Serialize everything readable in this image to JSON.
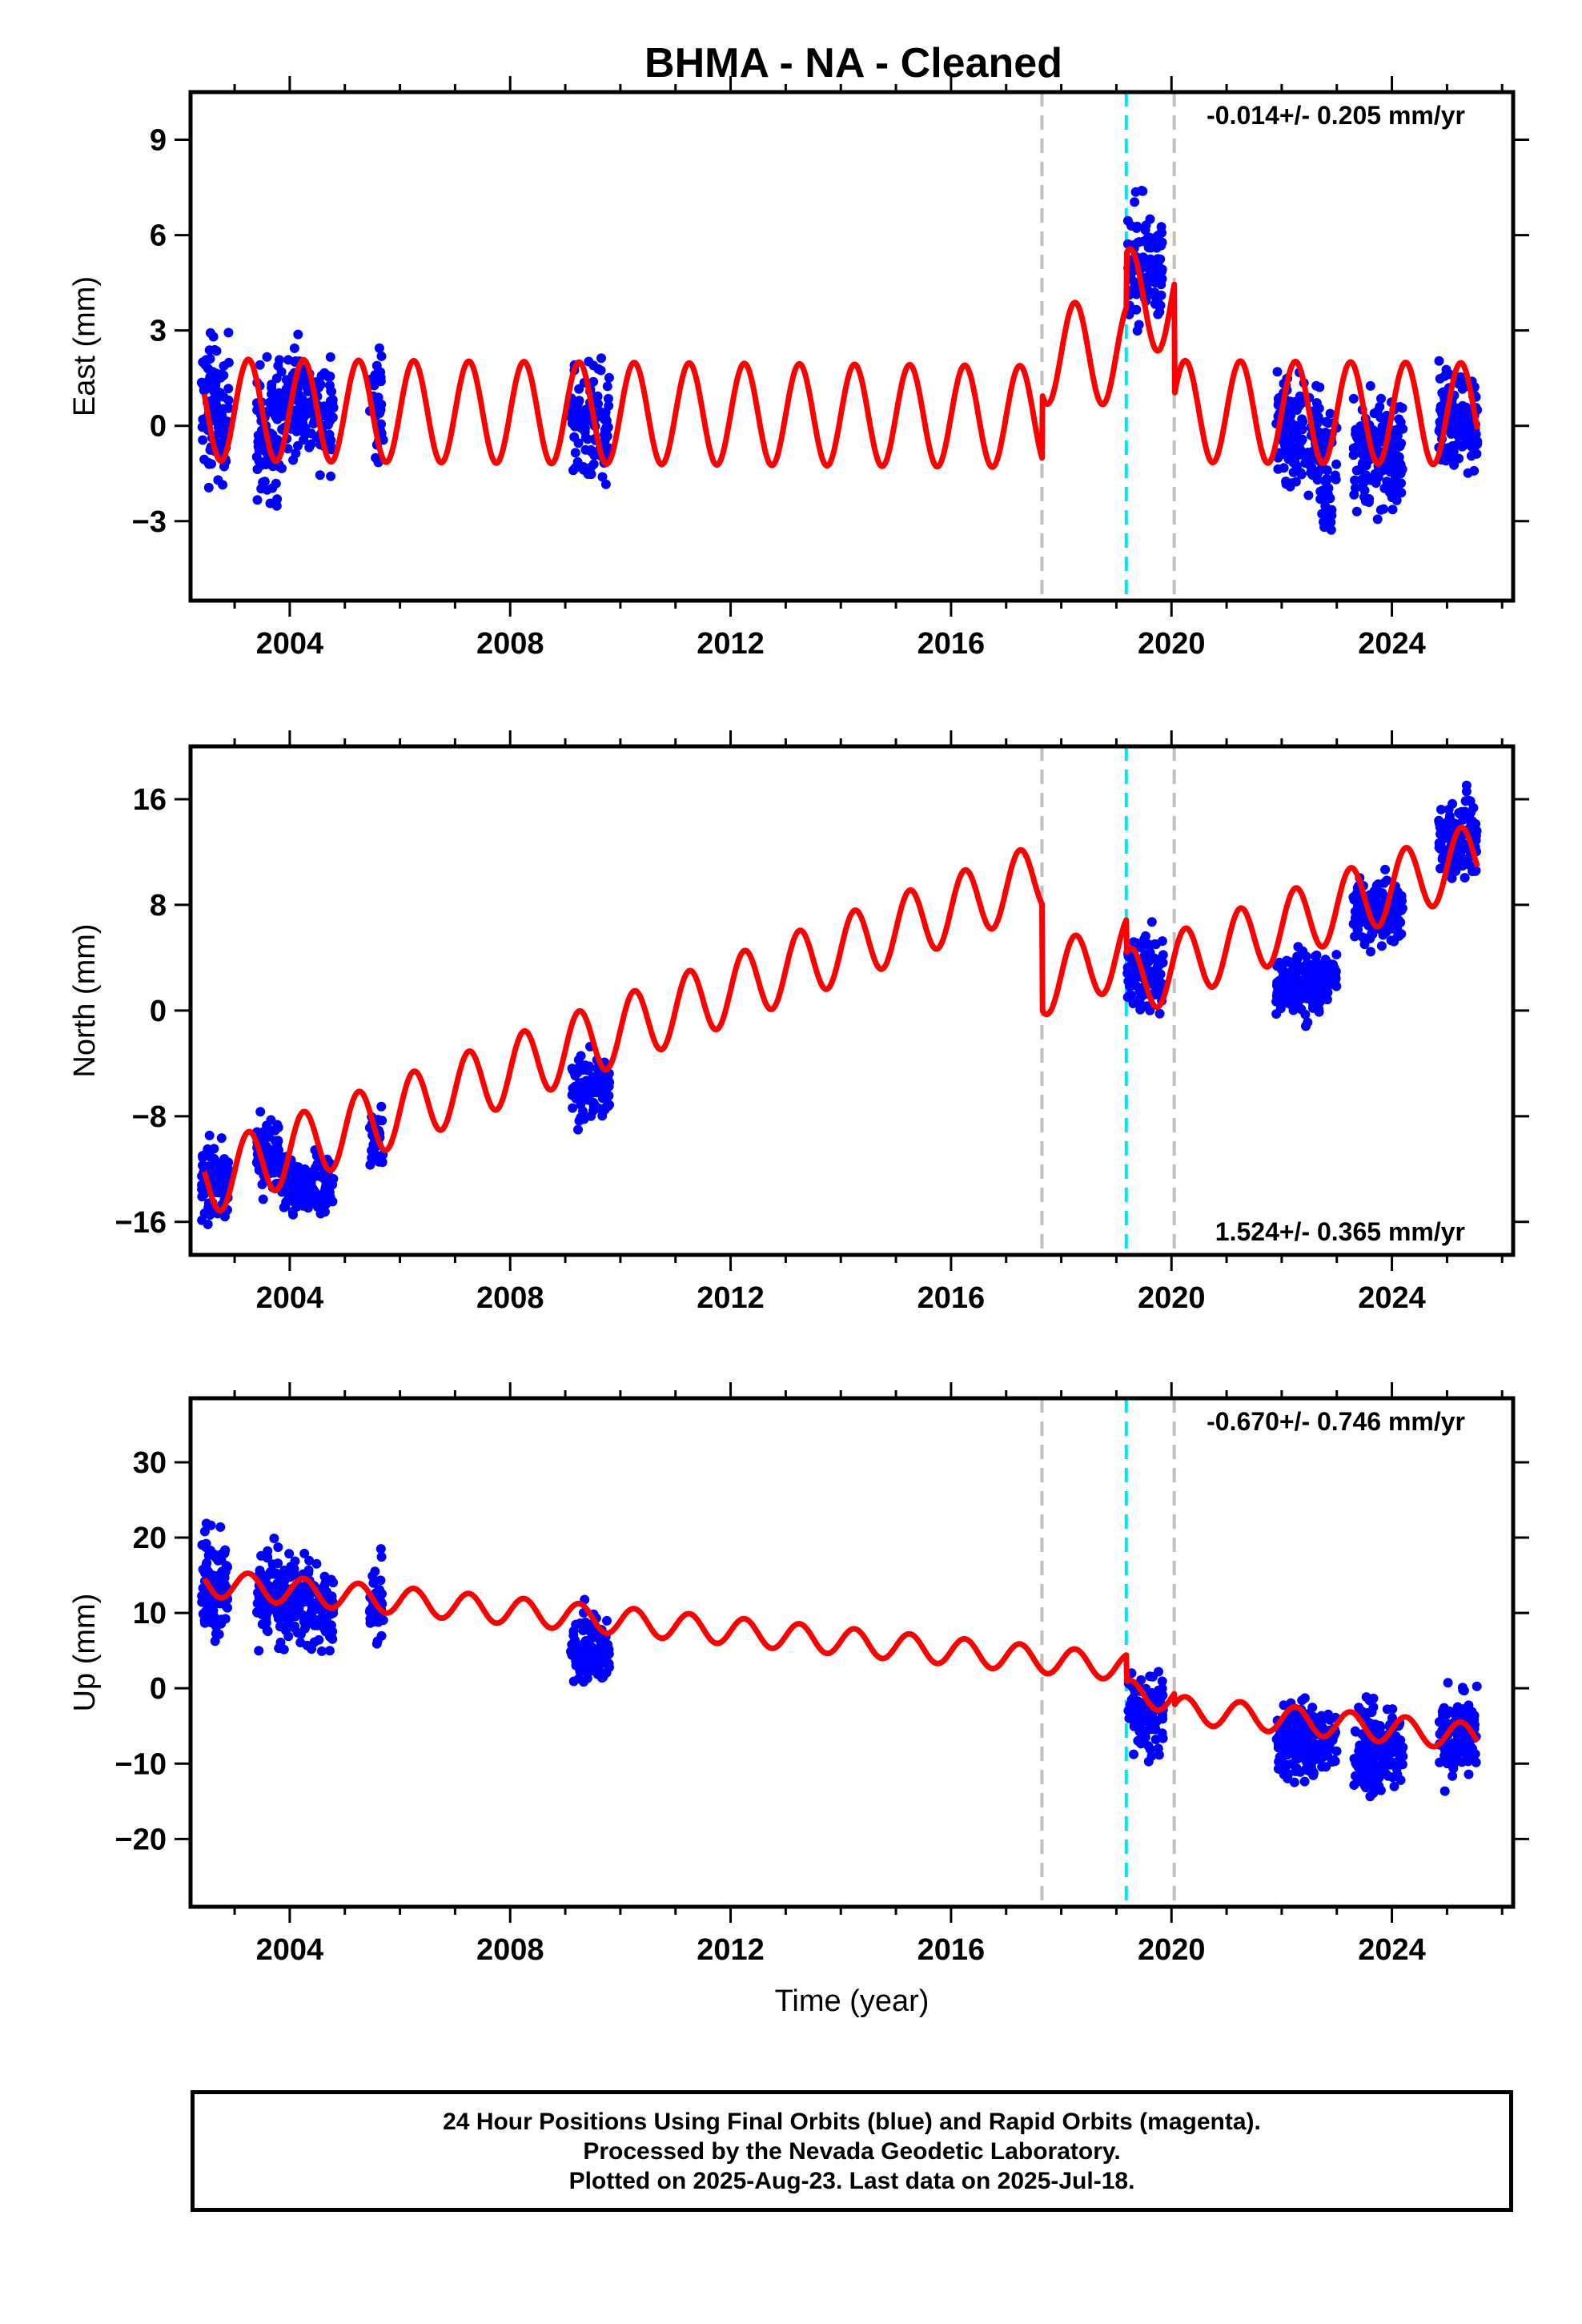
{
  "title": "BHMA  - NA - Cleaned",
  "footer": {
    "line1": "24 Hour Positions Using Final Orbits (blue) and Rapid Orbits (magenta).",
    "line2": "Processed by the Nevada Geodetic Laboratory.",
    "line3": "Plotted on 2025-Aug-23. Last data on 2025-Jul-18."
  },
  "colors": {
    "data_points": "#0000ff",
    "model_line": "#ff0000",
    "equipment_change": "#c0c0c0",
    "earthquake": "#00e5ee"
  },
  "chart_data": [
    {
      "type": "scatter",
      "name": "east",
      "ylabel": "East (mm)",
      "xlabel": "",
      "xlim": [
        2002.2,
        2026.2
      ],
      "ylim": [
        -5.5,
        10.5
      ],
      "yticks": [
        -3,
        0,
        3,
        6,
        9
      ],
      "xticks": [
        2004,
        2008,
        2012,
        2016,
        2020,
        2024
      ],
      "rate": "-0.014+/- 0.205 mm/yr",
      "rate_position": "top-right",
      "vertical_lines": [
        {
          "x": 2017.65,
          "kind": "equipment_change"
        },
        {
          "x": 2019.18,
          "kind": "earthquake"
        },
        {
          "x": 2020.05,
          "kind": "equipment_change"
        }
      ],
      "model": {
        "type": "line",
        "trend_per_yr": -0.014,
        "annual_amplitude": 1.6,
        "offsets": [
          {
            "x": 2017.65,
            "dy": 2.0
          },
          {
            "x": 2019.18,
            "dy": 1.7
          },
          {
            "x": 2020.05,
            "dy": -3.5
          }
        ]
      },
      "data_groups": [
        {
          "x_range": [
            2002.4,
            2002.9
          ],
          "center": 0.5,
          "spread": 2.1,
          "count": 110
        },
        {
          "x_range": [
            2003.4,
            2003.8
          ],
          "center": -0.2,
          "spread": 2.0,
          "count": 80
        },
        {
          "x_range": [
            2003.8,
            2004.8
          ],
          "center": 0.6,
          "spread": 1.7,
          "count": 170
        },
        {
          "x_range": [
            2005.45,
            2005.7
          ],
          "center": 0.8,
          "spread": 1.8,
          "count": 35
        },
        {
          "x_range": [
            2009.1,
            2009.8
          ],
          "center": 0.0,
          "spread": 1.8,
          "count": 110
        },
        {
          "x_range": [
            2019.2,
            2019.85
          ],
          "center": 5.0,
          "spread": 1.9,
          "count": 110
        },
        {
          "x_range": [
            2021.9,
            2022.7
          ],
          "center": -0.3,
          "spread": 1.6,
          "count": 150
        },
        {
          "x_range": [
            2022.7,
            2023.0
          ],
          "center": -1.5,
          "spread": 1.8,
          "count": 45
        },
        {
          "x_range": [
            2023.3,
            2024.2
          ],
          "center": -0.8,
          "spread": 1.8,
          "count": 160
        },
        {
          "x_range": [
            2024.85,
            2025.55
          ],
          "center": 0.2,
          "spread": 1.6,
          "count": 140
        }
      ]
    },
    {
      "type": "scatter",
      "name": "north",
      "ylabel": "North (mm)",
      "xlabel": "",
      "xlim": [
        2002.2,
        2026.2
      ],
      "ylim": [
        -18.5,
        20
      ],
      "yticks": [
        -16,
        -8,
        0,
        8,
        16
      ],
      "xticks": [
        2004,
        2008,
        2012,
        2016,
        2020,
        2024
      ],
      "rate": "1.524+/- 0.365 mm/yr",
      "rate_position": "bottom-right",
      "vertical_lines": [
        {
          "x": 2017.65,
          "kind": "equipment_change"
        },
        {
          "x": 2019.18,
          "kind": "earthquake"
        },
        {
          "x": 2020.05,
          "kind": "equipment_change"
        }
      ],
      "model": {
        "type": "line",
        "trend_per_yr": 1.524,
        "annual_amplitude": 2.6,
        "offsets": [
          {
            "x": 2017.65,
            "dy": -8.0
          },
          {
            "x": 2019.18,
            "dy": -2.5
          },
          {
            "x": 2020.05,
            "dy": 0.0
          }
        ]
      },
      "data_groups": [
        {
          "x_range": [
            2002.4,
            2002.9
          ],
          "center": -13.0,
          "spread": 2.4,
          "count": 110
        },
        {
          "x_range": [
            2003.4,
            2003.8
          ],
          "center": -11.0,
          "spread": 2.6,
          "count": 80
        },
        {
          "x_range": [
            2003.8,
            2004.8
          ],
          "center": -13.0,
          "spread": 2.0,
          "count": 170
        },
        {
          "x_range": [
            2005.45,
            2005.7
          ],
          "center": -10.0,
          "spread": 2.2,
          "count": 35
        },
        {
          "x_range": [
            2009.1,
            2009.8
          ],
          "center": -6.0,
          "spread": 2.3,
          "count": 110
        },
        {
          "x_range": [
            2019.2,
            2019.85
          ],
          "center": 3.0,
          "spread": 2.6,
          "count": 110
        },
        {
          "x_range": [
            2021.9,
            2022.7
          ],
          "center": 2.0,
          "spread": 2.5,
          "count": 150
        },
        {
          "x_range": [
            2022.7,
            2023.0
          ],
          "center": 2.5,
          "spread": 1.5,
          "count": 45
        },
        {
          "x_range": [
            2023.3,
            2024.2
          ],
          "center": 7.5,
          "spread": 2.3,
          "count": 160
        },
        {
          "x_range": [
            2024.85,
            2025.55
          ],
          "center": 13.0,
          "spread": 2.8,
          "count": 140
        }
      ]
    },
    {
      "type": "scatter",
      "name": "up",
      "ylabel": "Up (mm)",
      "xlabel": "Time (year)",
      "xlim": [
        2002.2,
        2026.2
      ],
      "ylim": [
        -29,
        38.5
      ],
      "yticks": [
        -20,
        -10,
        0,
        10,
        20,
        30
      ],
      "xticks": [
        2004,
        2008,
        2012,
        2016,
        2020,
        2024
      ],
      "rate": "-0.670+/- 0.746 mm/yr",
      "rate_position": "top-right",
      "vertical_lines": [
        {
          "x": 2017.65,
          "kind": "equipment_change"
        },
        {
          "x": 2019.18,
          "kind": "earthquake"
        },
        {
          "x": 2020.05,
          "kind": "equipment_change"
        }
      ],
      "model": {
        "type": "line",
        "trend_per_yr": -0.67,
        "annual_amplitude": 1.8,
        "offsets": [
          {
            "x": 2017.65,
            "dy": 0.0
          },
          {
            "x": 2019.18,
            "dy": -3.5
          },
          {
            "x": 2020.05,
            "dy": -1.5
          }
        ]
      },
      "data_groups": [
        {
          "x_range": [
            2002.4,
            2002.9
          ],
          "center": 14.0,
          "spread": 7.0,
          "count": 110
        },
        {
          "x_range": [
            2003.4,
            2003.8
          ],
          "center": 12.5,
          "spread": 6.5,
          "count": 80
        },
        {
          "x_range": [
            2003.8,
            2004.8
          ],
          "center": 11.0,
          "spread": 5.5,
          "count": 170
        },
        {
          "x_range": [
            2005.45,
            2005.7
          ],
          "center": 11.0,
          "spread": 5.5,
          "count": 35
        },
        {
          "x_range": [
            2009.1,
            2009.8
          ],
          "center": 5.0,
          "spread": 4.5,
          "count": 110
        },
        {
          "x_range": [
            2019.2,
            2019.85
          ],
          "center": -3.0,
          "spread": 5.0,
          "count": 110
        },
        {
          "x_range": [
            2021.9,
            2022.7
          ],
          "center": -7.0,
          "spread": 5.0,
          "count": 150
        },
        {
          "x_range": [
            2022.7,
            2023.0
          ],
          "center": -7.0,
          "spread": 4.0,
          "count": 45
        },
        {
          "x_range": [
            2023.3,
            2024.2
          ],
          "center": -8.0,
          "spread": 5.5,
          "count": 160
        },
        {
          "x_range": [
            2024.85,
            2025.55
          ],
          "center": -6.0,
          "spread": 5.5,
          "count": 140
        }
      ]
    }
  ]
}
